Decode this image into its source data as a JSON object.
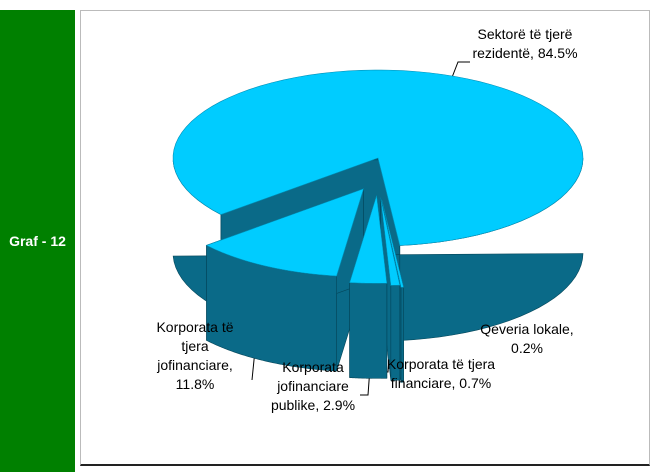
{
  "sidebar": {
    "label": "Graf - 12"
  },
  "chart_data": {
    "type": "pie",
    "categories": [
      "Sektorë të tjerë rezidentë,",
      "Qeveria lokale,",
      "Korporata të tjera financiare,",
      "Korporata jofinanciare publike,",
      "Korporata të tjera jofinanciare,"
    ],
    "values": [
      84.5,
      0.2,
      0.7,
      2.9,
      11.8
    ],
    "value_labels": [
      "84.5%",
      "0.2%",
      "0.7%",
      "2.9%",
      "11.8%"
    ],
    "color": "#00ccff",
    "side_color": "#0a6a88"
  }
}
